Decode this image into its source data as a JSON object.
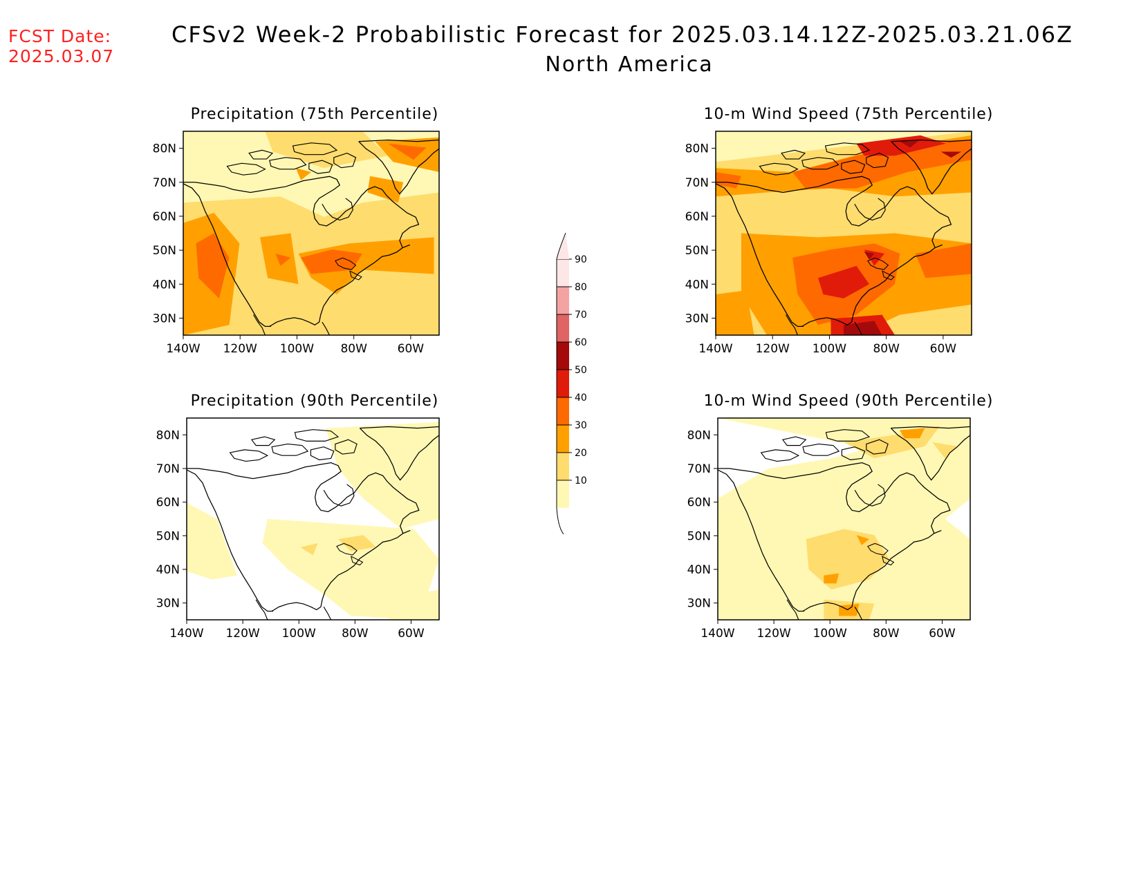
{
  "header": {
    "fcst_label": "FCST Date:",
    "fcst_date": "2025.03.07",
    "title": "CFSv2 Week-2 Probabilistic Forecast for 2025.03.14.12Z-2025.03.21.06Z",
    "subtitle": "North America"
  },
  "panels": [
    {
      "id": "precip75",
      "title": "Precipitation (75th Percentile)"
    },
    {
      "id": "wind75",
      "title": "10-m Wind Speed (75th Percentile)"
    },
    {
      "id": "precip90",
      "title": "Precipitation (90th Percentile)"
    },
    {
      "id": "wind90",
      "title": "10-m Wind Speed (90th Percentile)"
    }
  ],
  "axes": {
    "lat_labels": [
      "80N",
      "70N",
      "60N",
      "50N",
      "40N",
      "30N"
    ],
    "lon_labels": [
      "140W",
      "120W",
      "100W",
      "80W",
      "60W"
    ]
  },
  "colorbar": {
    "labels": [
      "90",
      "80",
      "70",
      "60",
      "50",
      "40",
      "30",
      "20",
      "10"
    ],
    "colors": [
      "#fde6e6",
      "#f4a3a3",
      "#e06464",
      "#a50a0a",
      "#e11b0a",
      "#ff6a00",
      "#ffa000",
      "#ffdc6e",
      "#fff8b4"
    ]
  },
  "map_data": {
    "extent": {
      "lon": [
        -140,
        -50
      ],
      "lat": [
        25,
        85
      ]
    },
    "probability_levels_percent": [
      10,
      20,
      30,
      40,
      50,
      60,
      70,
      80,
      90
    ]
  }
}
